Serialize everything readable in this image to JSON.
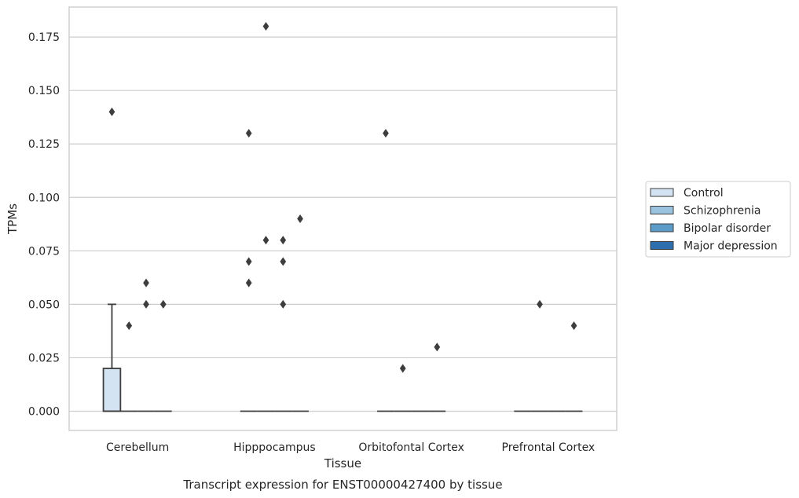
{
  "chart_data": {
    "type": "box",
    "xlabel": "Tissue",
    "ylabel": "TPMs",
    "caption": "Transcript expression for ENST00000427400 by tissue",
    "ylim": [
      -0.009,
      0.189
    ],
    "yticks": [
      0.0,
      0.025,
      0.05,
      0.075,
      0.1,
      0.125,
      0.15,
      0.175
    ],
    "ytick_labels": [
      "0.000",
      "0.025",
      "0.050",
      "0.075",
      "0.100",
      "0.125",
      "0.150",
      "0.175"
    ],
    "grid": "horizontal",
    "legend_position": "right",
    "categories": [
      "Cerebellum",
      "Hipppocampus",
      "Orbitofontal Cortex",
      "Prefrontal Cortex"
    ],
    "series": [
      {
        "name": "Control",
        "color": "#d4e3f1",
        "boxes": [
          {
            "q1": 0.0,
            "median": 0.0,
            "q3": 0.02,
            "whisker_low": 0.0,
            "whisker_high": 0.05,
            "outliers": [
              0.14
            ]
          },
          {
            "q1": 0.0,
            "median": 0.0,
            "q3": 0.0,
            "whisker_low": 0.0,
            "whisker_high": 0.0,
            "outliers": [
              0.07,
              0.06,
              0.13
            ]
          },
          {
            "q1": 0.0,
            "median": 0.0,
            "q3": 0.0,
            "whisker_low": 0.0,
            "whisker_high": 0.0,
            "outliers": [
              0.13
            ]
          },
          {
            "q1": 0.0,
            "median": 0.0,
            "q3": 0.0,
            "whisker_low": 0.0,
            "whisker_high": 0.0,
            "outliers": []
          }
        ]
      },
      {
        "name": "Schizophrenia",
        "color": "#9ac3df",
        "boxes": [
          {
            "q1": 0.0,
            "median": 0.0,
            "q3": 0.0,
            "whisker_low": 0.0,
            "whisker_high": 0.0,
            "outliers": [
              0.04
            ]
          },
          {
            "q1": 0.0,
            "median": 0.0,
            "q3": 0.0,
            "whisker_low": 0.0,
            "whisker_high": 0.0,
            "outliers": [
              0.08,
              0.18
            ]
          },
          {
            "q1": 0.0,
            "median": 0.0,
            "q3": 0.0,
            "whisker_low": 0.0,
            "whisker_high": 0.0,
            "outliers": [
              0.02
            ]
          },
          {
            "q1": 0.0,
            "median": 0.0,
            "q3": 0.0,
            "whisker_low": 0.0,
            "whisker_high": 0.0,
            "outliers": [
              0.05
            ]
          }
        ]
      },
      {
        "name": "Bipolar disorder",
        "color": "#5b9bc8",
        "boxes": [
          {
            "q1": 0.0,
            "median": 0.0,
            "q3": 0.0,
            "whisker_low": 0.0,
            "whisker_high": 0.0,
            "outliers": [
              0.06,
              0.05
            ]
          },
          {
            "q1": 0.0,
            "median": 0.0,
            "q3": 0.0,
            "whisker_low": 0.0,
            "whisker_high": 0.0,
            "outliers": [
              0.08,
              0.07,
              0.05
            ]
          },
          {
            "q1": 0.0,
            "median": 0.0,
            "q3": 0.0,
            "whisker_low": 0.0,
            "whisker_high": 0.0,
            "outliers": []
          },
          {
            "q1": 0.0,
            "median": 0.0,
            "q3": 0.0,
            "whisker_low": 0.0,
            "whisker_high": 0.0,
            "outliers": []
          }
        ]
      },
      {
        "name": "Major depression",
        "color": "#2d6eaf",
        "boxes": [
          {
            "q1": 0.0,
            "median": 0.0,
            "q3": 0.0,
            "whisker_low": 0.0,
            "whisker_high": 0.0,
            "outliers": [
              0.05
            ]
          },
          {
            "q1": 0.0,
            "median": 0.0,
            "q3": 0.0,
            "whisker_low": 0.0,
            "whisker_high": 0.0,
            "outliers": [
              0.09
            ]
          },
          {
            "q1": 0.0,
            "median": 0.0,
            "q3": 0.0,
            "whisker_low": 0.0,
            "whisker_high": 0.0,
            "outliers": [
              0.03
            ]
          },
          {
            "q1": 0.0,
            "median": 0.0,
            "q3": 0.0,
            "whisker_low": 0.0,
            "whisker_high": 0.0,
            "outliers": [
              0.04
            ]
          }
        ]
      }
    ]
  }
}
